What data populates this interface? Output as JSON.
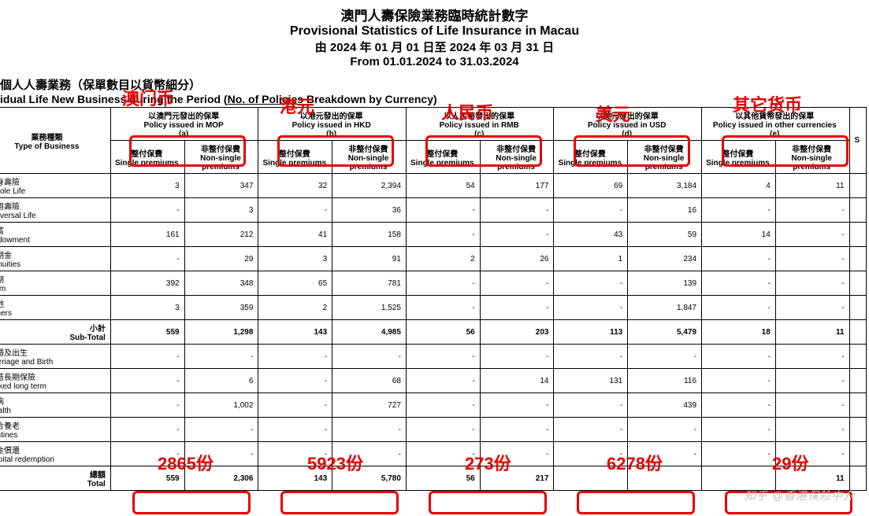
{
  "header": {
    "title_zh": "澳門人壽保險業務臨時統計數字",
    "title_en": "Provisional Statistics of Life Insurance in Macau",
    "period_zh": "由 2024 年 01 月 01 日至 2024 年 03 月 31 日",
    "period_en": "From 01.01.2024 to 31.03.2024"
  },
  "subtitle": {
    "zh": "個人人壽業務（保單數目以貨幣細分）",
    "en_pre": "idual Life New Business during the Period (",
    "en_underline": "No. of Policies",
    "en_post": " Breakdown by Currency)"
  },
  "annotations": {
    "mop": "澳门币",
    "hkd": "港元",
    "rmb": "人民币",
    "usd": "美元",
    "other": "其它货币",
    "t_mop": "2865份",
    "t_hkd": "5923份",
    "t_rmb": "273份",
    "t_usd": "6278份",
    "t_other": "29份"
  },
  "columns": {
    "type_zh": "業務種類",
    "type_en": "Type of Business",
    "groups": [
      {
        "zh": "以澳門元發出的保單",
        "en": "Policy issued in MOP",
        "code": "(a)"
      },
      {
        "zh": "以港元發出的保單",
        "en": "Policy issued in HKD",
        "code": "(b)"
      },
      {
        "zh": "以人民幣發出的保單",
        "en": "Policy issued in RMB",
        "code": "(c)"
      },
      {
        "zh": "以美元發出的保單",
        "en": "Policy issued in USD",
        "code": "(d)"
      },
      {
        "zh": "以其他貨幣發出的保單",
        "en": "Policy issued in other currencies",
        "code": "(e)"
      }
    ],
    "sub_single_zh": "整付保費",
    "sub_single_en": "Single premiums",
    "sub_non_zh": "非整付保費",
    "sub_non_en": "Non-single premiums",
    "stub": "S"
  },
  "rows": [
    {
      "zh": "終身壽險",
      "en": "Whole Life",
      "v": [
        "3",
        "347",
        "32",
        "2,394",
        "54",
        "177",
        "69",
        "3,184",
        "4",
        "11"
      ]
    },
    {
      "zh": "萬用壽險",
      "en": "Universal Life",
      "v": [
        "-",
        "3",
        "-",
        "36",
        "-",
        "-",
        "-",
        "16",
        "-",
        "-"
      ]
    },
    {
      "zh": "儲蓄",
      "en": "Endowment",
      "v": [
        "161",
        "212",
        "41",
        "158",
        "-",
        "-",
        "43",
        "59",
        "14",
        "-"
      ]
    },
    {
      "zh": "定期金",
      "en": "Annuities",
      "v": [
        "-",
        "29",
        "3",
        "91",
        "2",
        "26",
        "1",
        "234",
        "-",
        "-"
      ]
    },
    {
      "zh": "定期",
      "en": "Term",
      "v": [
        "392",
        "348",
        "65",
        "781",
        "-",
        "-",
        "-",
        "139",
        "-",
        "-"
      ]
    },
    {
      "zh": "其他",
      "en": "Others",
      "v": [
        "3",
        "359",
        "2",
        "1,525",
        "-",
        "-",
        "-",
        "1,847",
        "-",
        "-"
      ]
    }
  ],
  "subtotal": {
    "zh": "小計",
    "en": "Sub-Total",
    "v": [
      "559",
      "1,298",
      "143",
      "4,985",
      "56",
      "203",
      "113",
      "5,479",
      "18",
      "11"
    ]
  },
  "rows2": [
    {
      "zh": "結婚及出生",
      "en": "Marriage and Birth",
      "v": [
        "-",
        "-",
        "-",
        "-",
        "-",
        "-",
        "-",
        "-",
        "-",
        "-"
      ]
    },
    {
      "zh": "連結長期保險",
      "en": "Linked long term",
      "v": [
        "-",
        "6",
        "-",
        "68",
        "-",
        "14",
        "131",
        "116",
        "-",
        "-"
      ]
    },
    {
      "zh": "疾病",
      "en": "Health",
      "v": [
        "-",
        "1,002",
        "-",
        "727",
        "-",
        "-",
        "-",
        "439",
        "-",
        "-"
      ]
    },
    {
      "zh": "綜合養老",
      "en": "Tontines",
      "v": [
        "-",
        "-",
        "-",
        "-",
        "-",
        "-",
        "-",
        "-",
        "-",
        "-"
      ]
    },
    {
      "zh": "資金償還",
      "en": "Capital redemption",
      "v": [
        "-",
        "-",
        "-",
        "-",
        "-",
        "-",
        "-",
        "-",
        "-",
        "-"
      ]
    }
  ],
  "total": {
    "zh": "總額",
    "en": "Total",
    "v": [
      "559",
      "2,306",
      "143",
      "5,780",
      "56",
      "217",
      "",
      "",
      "",
      "11"
    ]
  },
  "watermark": "知乎  @香港保险中介",
  "style": {
    "annot_color": "#e60000",
    "box_border": "#e60000",
    "text_color": "#000000",
    "bg": "#ffffff"
  }
}
